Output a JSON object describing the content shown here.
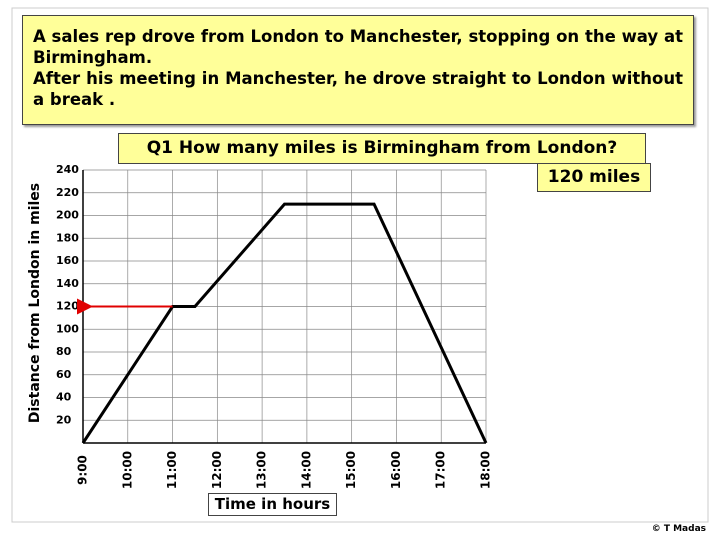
{
  "chart_data": {
    "type": "line",
    "problem": [
      "A sales rep drove from London to Manchester, stopping on the way at Birmingham.",
      "After his meeting in Manchester, he drove straight to London without a break ."
    ],
    "question": "Q1  How many miles is Birmingham from London?",
    "answer": "120 miles",
    "x_label": "Time in hours",
    "y_label": "Distance from London in miles",
    "x": [
      9,
      11,
      11.5,
      13.5,
      15.5,
      18
    ],
    "series": [
      {
        "color": "#000000",
        "values": [
          0,
          120,
          120,
          210,
          210,
          0
        ]
      }
    ],
    "guide_color": "#e00000",
    "xlim": [
      9,
      18
    ],
    "xticks": [
      {
        "value": 9,
        "label": "9:00"
      },
      {
        "value": 10,
        "label": "10:00"
      },
      {
        "value": 11,
        "label": "11:00"
      },
      {
        "value": 12,
        "label": "12:00"
      },
      {
        "value": 13,
        "label": "13:00"
      },
      {
        "value": 14,
        "label": "14:00"
      },
      {
        "value": 15,
        "label": "15:00"
      },
      {
        "value": 16,
        "label": "16:00"
      },
      {
        "value": 17,
        "label": "17:00"
      },
      {
        "value": 18,
        "label": "18:00"
      }
    ],
    "ylim": [
      0,
      240
    ],
    "yticks": [
      20,
      40,
      60,
      80,
      100,
      120,
      140,
      160,
      180,
      200,
      220,
      240
    ],
    "grid": true,
    "copyright": "© T Madas"
  }
}
